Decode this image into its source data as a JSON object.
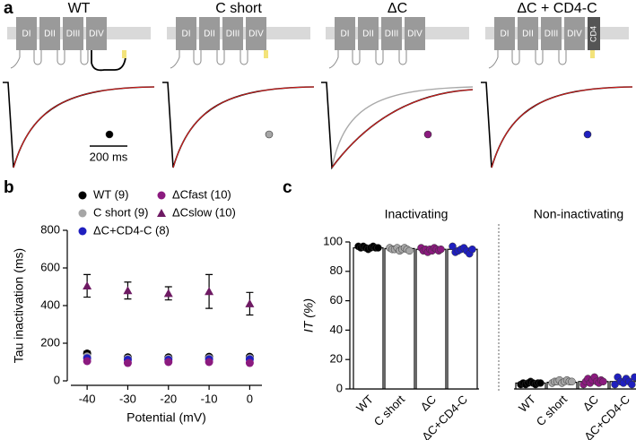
{
  "panel_labels": [
    "a",
    "b",
    "c"
  ],
  "panel_a": {
    "titles": [
      "WT",
      "C short",
      "ΔC",
      "ΔC + CD4-C"
    ],
    "domains": [
      "DI",
      "DII",
      "DIII",
      "DIV"
    ],
    "cd4": "CD4",
    "scale_bar": "200 ms"
  },
  "chart_data": [
    {
      "type": "scatter",
      "xlabel": "Potential (mV)",
      "ylabel": "Tau inactivation (ms)",
      "x": [
        -40,
        -30,
        -20,
        -10,
        0
      ],
      "xlim": [
        -44,
        3
      ],
      "xticks": [
        -40,
        -30,
        -20,
        -10,
        0
      ],
      "ylim": [
        0,
        800
      ],
      "yticks": [
        0,
        200,
        400,
        600,
        800
      ],
      "series": [
        {
          "name": "WT (9)",
          "color": "#000000",
          "marker": "circle",
          "values": [
            145,
            125,
            125,
            128,
            128
          ],
          "errors": [
            12,
            5,
            5,
            5,
            5
          ]
        },
        {
          "name": "C short (9)",
          "color": "#a6a6a6",
          "marker": "circle",
          "values": [
            130,
            118,
            118,
            120,
            120
          ]
        },
        {
          "name": "ΔC+CD4-C (8)",
          "color": "#1f1fbf",
          "marker": "circle",
          "values": [
            120,
            112,
            112,
            114,
            114
          ]
        },
        {
          "name": "ΔCfast (10)",
          "color": "#8b1a7f",
          "marker": "circle",
          "values": [
            105,
            95,
            100,
            100,
            95
          ]
        },
        {
          "name": "ΔCslow (10)",
          "color": "#6e1a63",
          "marker": "triangle",
          "values": [
            505,
            480,
            465,
            475,
            410
          ],
          "errors": [
            60,
            45,
            35,
            90,
            60
          ]
        }
      ]
    },
    {
      "type": "bar",
      "ylabel": "IT (%)",
      "ylim": [
        0,
        100
      ],
      "yticks": [
        0,
        20,
        40,
        60,
        80,
        100
      ],
      "colors": [
        "#000000",
        "#a6a6a6",
        "#8b1a7f",
        "#1f1fbf"
      ],
      "groups": [
        {
          "title": "Inactivating",
          "categories": [
            "WT",
            "C short",
            "ΔC",
            "ΔC+CD4-C"
          ],
          "values": [
            96,
            95.5,
            95,
            95
          ],
          "points": [
            [
              97,
              96,
              97,
              96,
              95,
              96,
              97,
              96,
              96
            ],
            [
              96,
              95,
              95,
              96,
              94,
              95,
              96,
              95,
              94
            ],
            [
              96,
              94,
              95,
              93,
              95,
              94,
              96,
              95,
              94,
              95
            ],
            [
              97,
              93,
              94,
              95,
              96,
              94,
              92,
              95
            ]
          ]
        },
        {
          "title": "Non-inactivating",
          "categories": [
            "WT",
            "C short",
            "ΔC",
            "ΔC+CD4-C"
          ],
          "values": [
            4,
            4.5,
            5,
            5
          ],
          "points": [
            [
              3,
              4,
              3,
              4,
              5,
              4,
              3,
              4,
              4
            ],
            [
              4,
              5,
              5,
              6,
              4,
              5,
              6,
              5,
              5
            ],
            [
              3,
              5,
              7,
              4,
              6,
              8,
              5,
              4,
              6,
              5
            ],
            [
              3,
              8,
              5,
              4,
              7,
              5,
              3,
              8
            ]
          ]
        }
      ]
    }
  ]
}
